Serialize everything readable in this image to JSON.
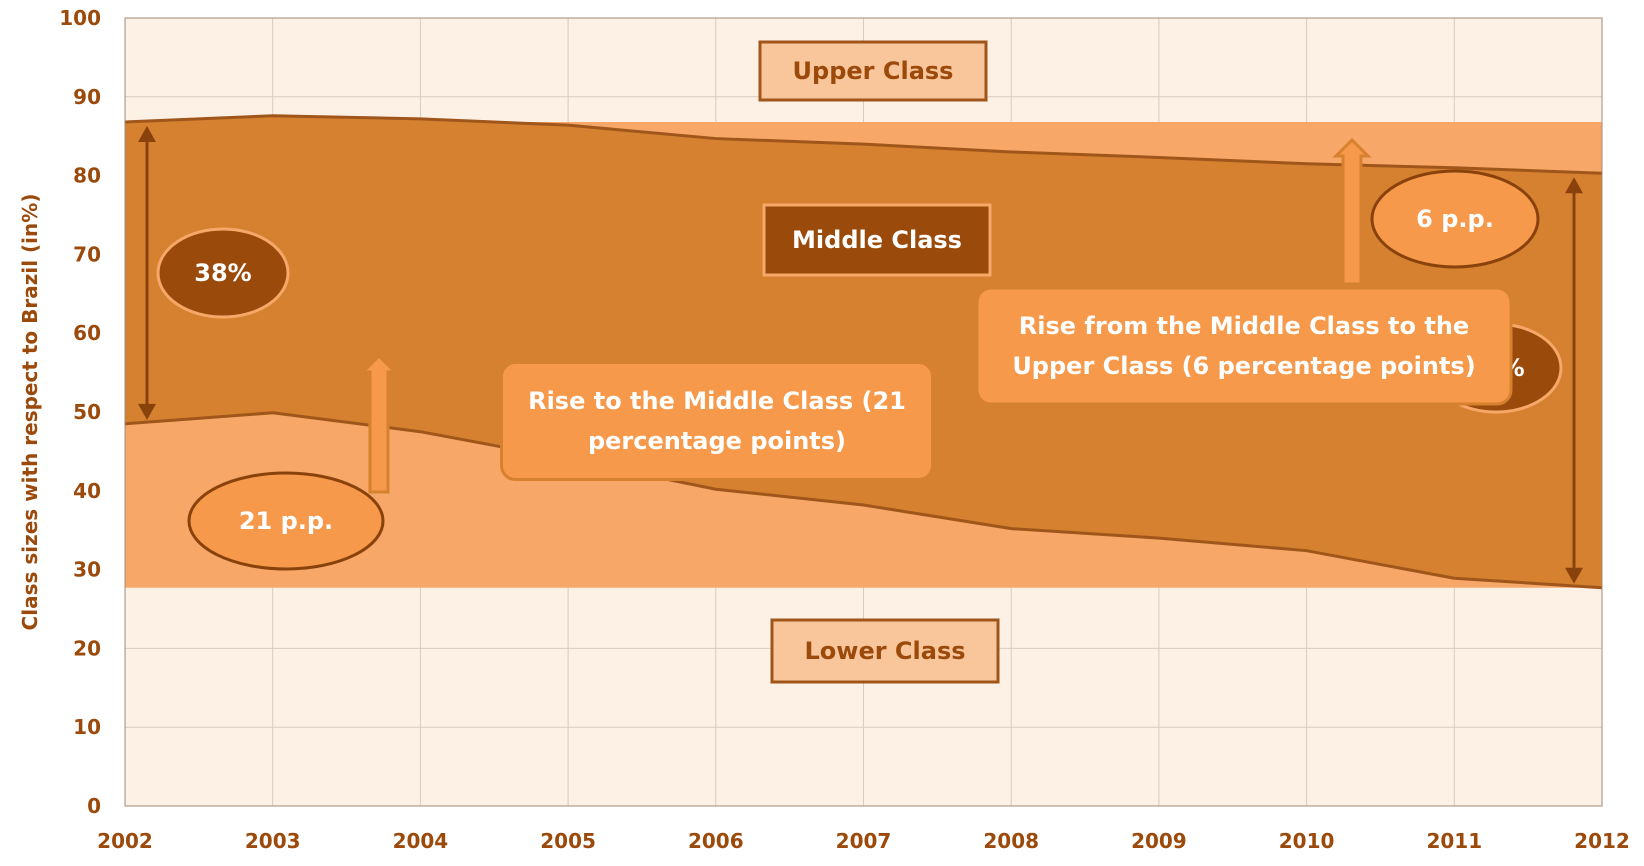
{
  "chart_data": {
    "type": "area",
    "ylabel": "Class sizes with respect to Brazil (in%)",
    "x": [
      2002,
      2003,
      2004,
      2005,
      2006,
      2007,
      2008,
      2009,
      2010,
      2011,
      2012
    ],
    "series": [
      {
        "color": "#f7a767",
        "values": [
          48.5,
          49.9,
          47.5,
          44.0,
          40.2,
          38.2,
          35.2,
          34.0,
          32.4,
          28.9,
          27.7
        ]
      },
      {
        "color": "#d6812f",
        "values": [
          86.8,
          87.6,
          87.2,
          86.4,
          84.7,
          84.0,
          83.0,
          82.3,
          81.5,
          81.0,
          80.3
        ]
      }
    ],
    "xlim": [
      2002,
      2012
    ],
    "xticks": [
      2002,
      2003,
      2004,
      2005,
      2006,
      2007,
      2008,
      2009,
      2010,
      2011,
      2012
    ],
    "ylim": [
      0,
      100
    ],
    "yticks": [
      0,
      10,
      20,
      30,
      40,
      50,
      60,
      70,
      80,
      90,
      100
    ],
    "grid": true,
    "annotations": [
      {
        "lines": [
          "Upper Class"
        ]
      },
      {
        "lines": [
          "Middle Class"
        ]
      },
      {
        "lines": [
          "Lower Class"
        ]
      },
      {
        "lines": [
          "38%"
        ]
      },
      {
        "lines": [
          "53%"
        ]
      },
      {
        "lines": [
          "21 p.p."
        ]
      },
      {
        "lines": [
          "6 p.p."
        ]
      },
      {
        "lines": [
          "Rise to the Middle Class (21",
          "percentage points)"
        ]
      },
      {
        "lines": [
          "Rise from the Middle Class to the",
          "Upper Class (6 percentage points)"
        ]
      }
    ]
  }
}
